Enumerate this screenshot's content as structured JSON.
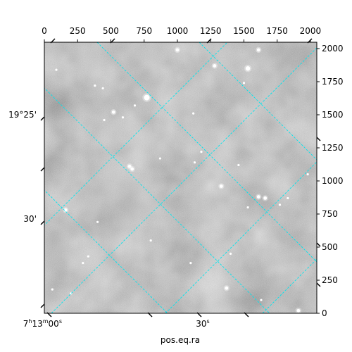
{
  "chart_data": {
    "type": "scatter",
    "title": "",
    "pixel_axes": {
      "x_ticks": [
        0,
        250,
        500,
        750,
        1000,
        1250,
        1500,
        1750,
        2000
      ],
      "y_ticks": [
        0,
        250,
        500,
        750,
        1000,
        1250,
        1500,
        1750,
        2000
      ],
      "xlim": [
        0,
        2048
      ],
      "ylim": [
        0,
        2048
      ]
    },
    "world_axes": {
      "xlabel": "pos.eq.ra",
      "ra_ticks": [
        {
          "label_main": "7",
          "label_h": "h",
          "label_m": "13",
          "label_mu": "m",
          "label_s": "00",
          "label_su": "s",
          "value": "7h13m00s"
        },
        {
          "label_main": "30",
          "label_su": "s",
          "value": "7h13m30s"
        }
      ],
      "dec_ticks": [
        {
          "label": "19°25'",
          "value": "19d25m"
        },
        {
          "label": "30'",
          "value": "19d30m"
        }
      ]
    },
    "grid": {
      "on": true,
      "color": "#00e5ee",
      "style": "dashed"
    },
    "image": {
      "colormap": "gray",
      "background": "noisy mottled sky"
    },
    "stars": [
      {
        "x": 1530,
        "y": 1850,
        "r": 4
      },
      {
        "x": 770,
        "y": 1630,
        "r": 5
      },
      {
        "x": 1610,
        "y": 1990,
        "r": 3
      },
      {
        "x": 1280,
        "y": 1870,
        "r": 3
      },
      {
        "x": 1000,
        "y": 1990,
        "r": 3
      },
      {
        "x": 520,
        "y": 1520,
        "r": 3
      },
      {
        "x": 660,
        "y": 1090,
        "r": 3
      },
      {
        "x": 640,
        "y": 1110,
        "r": 3
      },
      {
        "x": 160,
        "y": 780,
        "r": 3
      },
      {
        "x": 1330,
        "y": 960,
        "r": 3
      },
      {
        "x": 1610,
        "y": 880,
        "r": 3
      },
      {
        "x": 1660,
        "y": 870,
        "r": 3
      },
      {
        "x": 1370,
        "y": 190,
        "r": 3
      },
      {
        "x": 1910,
        "y": 20,
        "r": 3
      },
      {
        "x": 680,
        "y": 1570,
        "r": 2
      },
      {
        "x": 1130,
        "y": 1140,
        "r": 2
      },
      {
        "x": 870,
        "y": 1170,
        "r": 2
      },
      {
        "x": 1530,
        "y": 800,
        "r": 2
      },
      {
        "x": 1460,
        "y": 1120,
        "r": 2
      },
      {
        "x": 800,
        "y": 550,
        "r": 2
      },
      {
        "x": 1100,
        "y": 380,
        "r": 2
      },
      {
        "x": 380,
        "y": 1720,
        "r": 2
      },
      {
        "x": 440,
        "y": 1700,
        "r": 2
      },
      {
        "x": 90,
        "y": 1840,
        "r": 2
      },
      {
        "x": 60,
        "y": 180,
        "r": 2
      },
      {
        "x": 1500,
        "y": 1740,
        "r": 2
      },
      {
        "x": 1400,
        "y": 450,
        "r": 2
      },
      {
        "x": 1770,
        "y": 820,
        "r": 2
      },
      {
        "x": 1830,
        "y": 870,
        "r": 2
      },
      {
        "x": 330,
        "y": 430,
        "r": 2
      },
      {
        "x": 290,
        "y": 380,
        "r": 2
      },
      {
        "x": 1980,
        "y": 1050,
        "r": 2
      },
      {
        "x": 400,
        "y": 690,
        "r": 2
      },
      {
        "x": 590,
        "y": 1480,
        "r": 2
      },
      {
        "x": 1180,
        "y": 1220,
        "r": 2
      },
      {
        "x": 200,
        "y": 150,
        "r": 2
      },
      {
        "x": 1630,
        "y": 100,
        "r": 2
      },
      {
        "x": 1120,
        "y": 1510,
        "r": 2
      },
      {
        "x": 450,
        "y": 1460,
        "r": 2
      }
    ]
  }
}
